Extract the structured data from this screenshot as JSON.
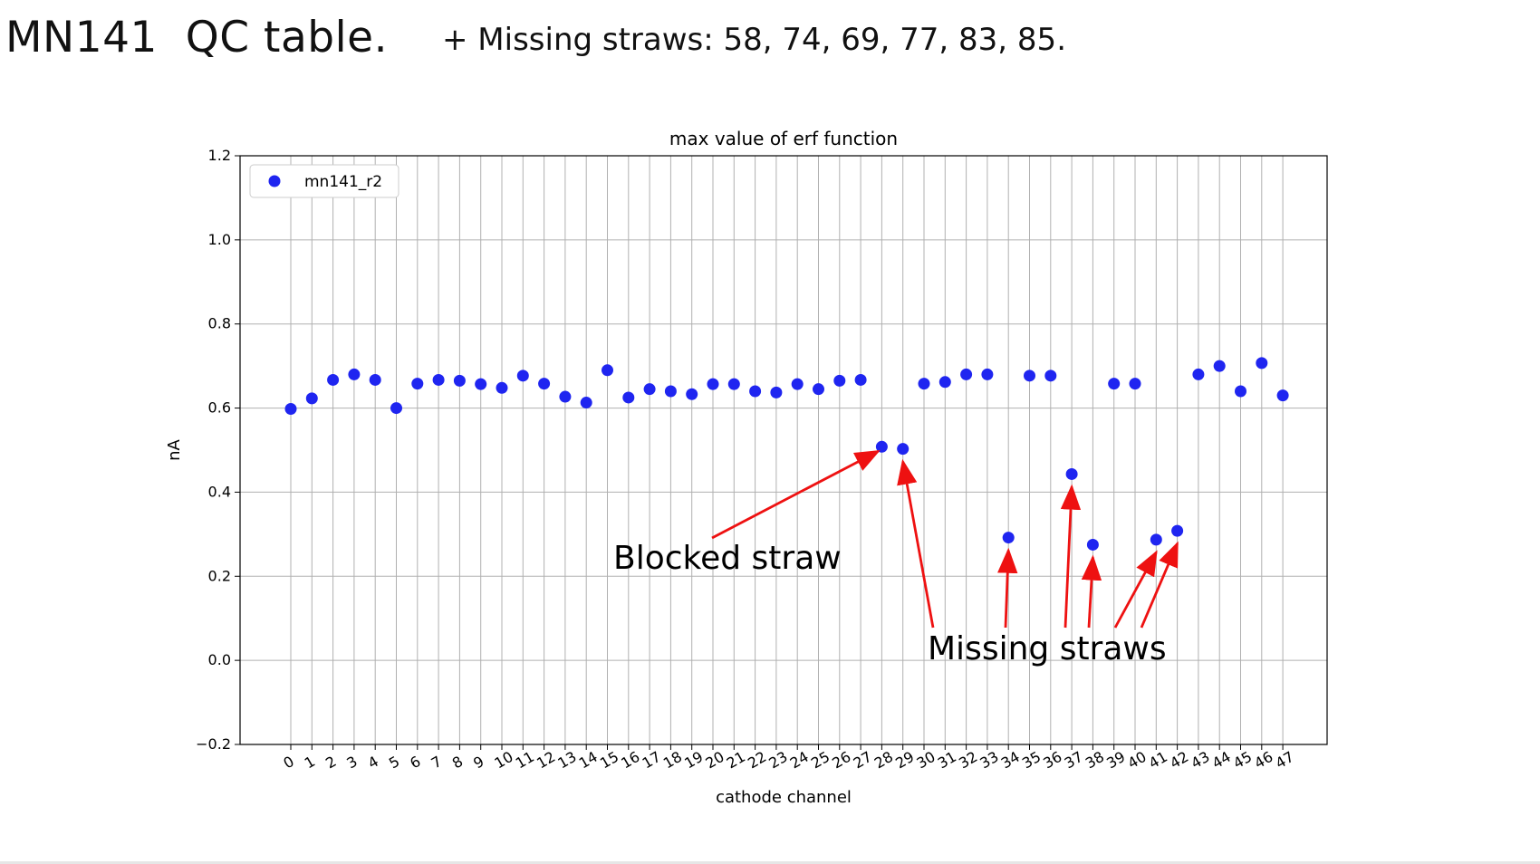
{
  "slide": {
    "title": "MN141  QC table.",
    "note": "+ Missing straws: 58, 74, 69, 77, 83, 85."
  },
  "chart_data": {
    "type": "scatter",
    "title": "max value of erf function",
    "xlabel": "cathode channel",
    "ylabel": "nA",
    "ylim": [
      -0.2,
      1.2
    ],
    "yticks": [
      -0.2,
      0.0,
      0.2,
      0.4,
      0.6,
      0.8,
      1.0,
      1.2
    ],
    "ytick_labels": [
      "−0.2",
      "0.0",
      "0.2",
      "0.4",
      "0.6",
      "0.8",
      "1.0",
      "1.2"
    ],
    "grid": true,
    "legend_position": "top-left",
    "series": [
      {
        "name": "mn141_r2",
        "color": "#1f25f0",
        "x": [
          0,
          1,
          2,
          3,
          4,
          5,
          6,
          7,
          8,
          9,
          10,
          11,
          12,
          13,
          14,
          15,
          16,
          17,
          18,
          19,
          20,
          21,
          22,
          23,
          24,
          25,
          26,
          27,
          28,
          29,
          30,
          31,
          32,
          33,
          34,
          35,
          36,
          37,
          38,
          39,
          40,
          41,
          42,
          43,
          44,
          45,
          46,
          47
        ],
        "y": [
          0.598,
          0.623,
          0.667,
          0.68,
          0.667,
          0.6,
          0.658,
          0.667,
          0.665,
          0.657,
          0.648,
          0.677,
          0.658,
          0.627,
          0.613,
          0.69,
          0.625,
          0.645,
          0.64,
          0.633,
          0.657,
          0.657,
          0.64,
          0.637,
          0.657,
          0.645,
          0.665,
          0.667,
          0.508,
          0.503,
          0.658,
          0.662,
          0.68,
          0.68,
          0.292,
          0.677,
          0.677,
          0.443,
          0.275,
          0.658,
          0.658,
          0.287,
          0.308,
          0.68,
          0.7,
          0.64,
          0.707,
          0.63
        ]
      }
    ],
    "annotations": [
      {
        "text": "Blocked straw",
        "arrow_targets": [
          28
        ]
      },
      {
        "text": "Missing straws",
        "arrow_targets": [
          29,
          34,
          37,
          38,
          41,
          42
        ]
      }
    ],
    "arrow_color": "#ee1111"
  }
}
